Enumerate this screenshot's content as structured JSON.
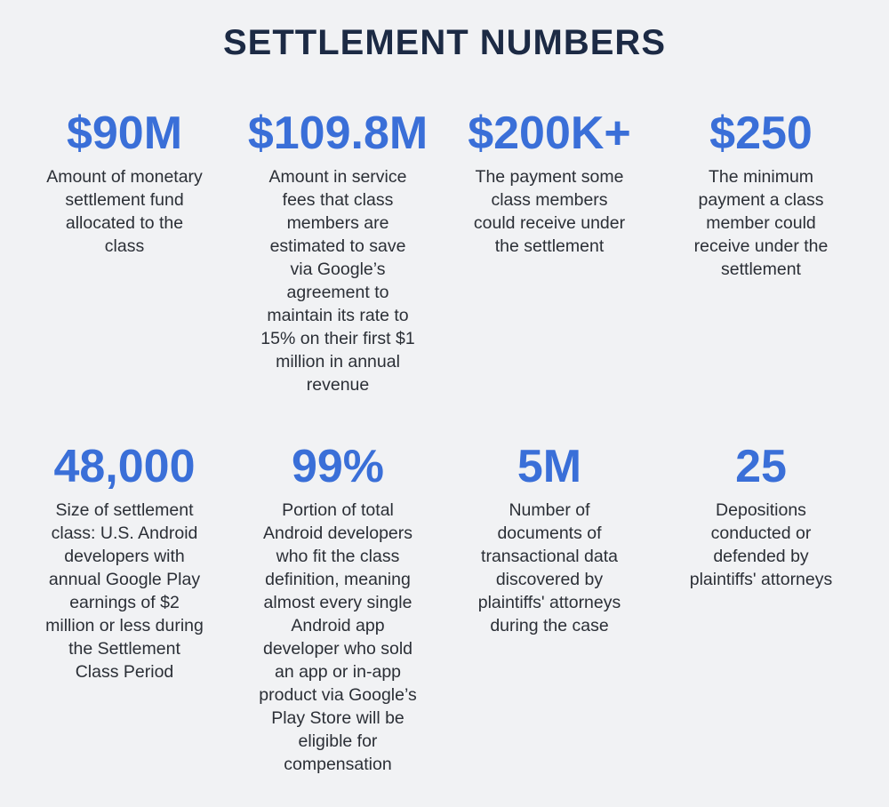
{
  "title": "SETTLEMENT NUMBERS",
  "colors": {
    "background": "#f1f2f4",
    "title": "#1c2a44",
    "accent": "#3a6fd8",
    "text": "#2b2f36"
  },
  "stats": [
    {
      "value": "$90M",
      "description": "Amount of monetary settlement fund allocated to the class"
    },
    {
      "value": "$109.8M",
      "description": "Amount in service fees that class members are estimated to save via Google’s agreement to maintain its rate to 15% on their first $1 million in annual revenue"
    },
    {
      "value": "$200K+",
      "description": "The payment some class members could receive under the settlement"
    },
    {
      "value": "$250",
      "description": "The minimum payment a class member could receive under the settlement"
    },
    {
      "value": "48,000",
      "description": "Size of settlement class: U.S. Android developers with annual Google Play earnings of $2 million or less during the Settlement Class Period"
    },
    {
      "value": "99%",
      "description": "Portion of total Android developers who fit the class definition, meaning almost every single Android app developer who sold an app or in-app product via Google’s Play Store will be eligible for compensation"
    },
    {
      "value": "5M",
      "description": "Number of documents of transactional data discovered by plaintiffs' attorneys during the case"
    },
    {
      "value": "25",
      "description": "Depositions conducted or defended by plaintiffs' attorneys"
    }
  ]
}
